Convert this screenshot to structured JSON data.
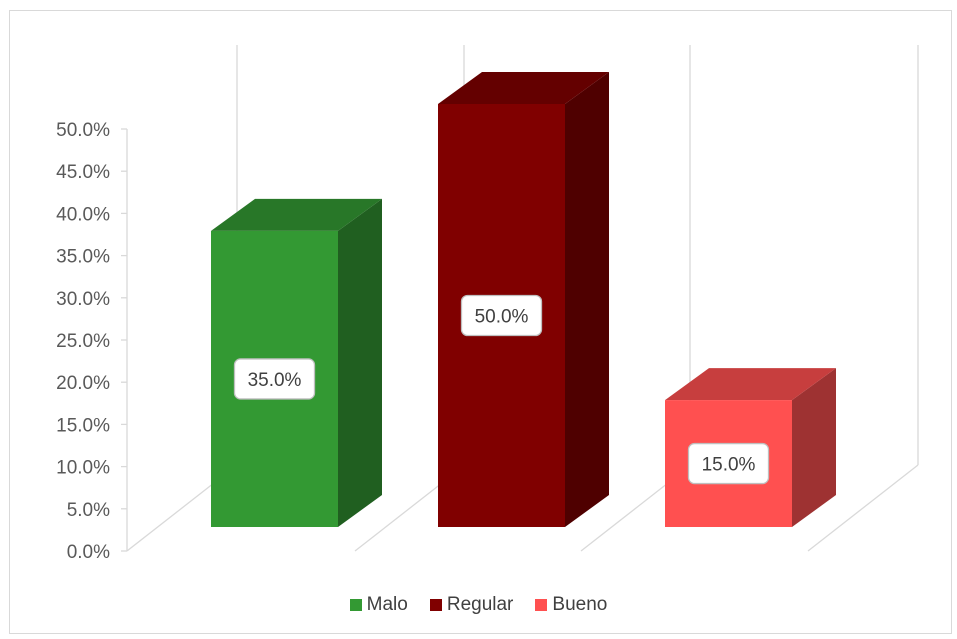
{
  "chart_data": {
    "type": "bar",
    "style": "3d-column",
    "categories": [
      "Malo",
      "Regular",
      "Bueno"
    ],
    "values": [
      35.0,
      50.0,
      15.0
    ],
    "data_labels": [
      "35.0%",
      "50.0%",
      "15.0%"
    ],
    "colors": [
      "#339933",
      "#800000",
      "#FF5050"
    ],
    "ylim": [
      0,
      50
    ],
    "yticks": [
      0,
      5,
      10,
      15,
      20,
      25,
      30,
      35,
      40,
      45,
      50
    ],
    "ytick_labels": [
      "0.0%",
      "5.0%",
      "10.0%",
      "15.0%",
      "20.0%",
      "25.0%",
      "30.0%",
      "35.0%",
      "40.0%",
      "45.0%",
      "50.0%"
    ],
    "grid": true,
    "legend_position": "bottom",
    "legend": [
      {
        "label": "Malo",
        "color": "#339933"
      },
      {
        "label": "Regular",
        "color": "#800000"
      },
      {
        "label": "Bueno",
        "color": "#FF5050"
      }
    ]
  }
}
